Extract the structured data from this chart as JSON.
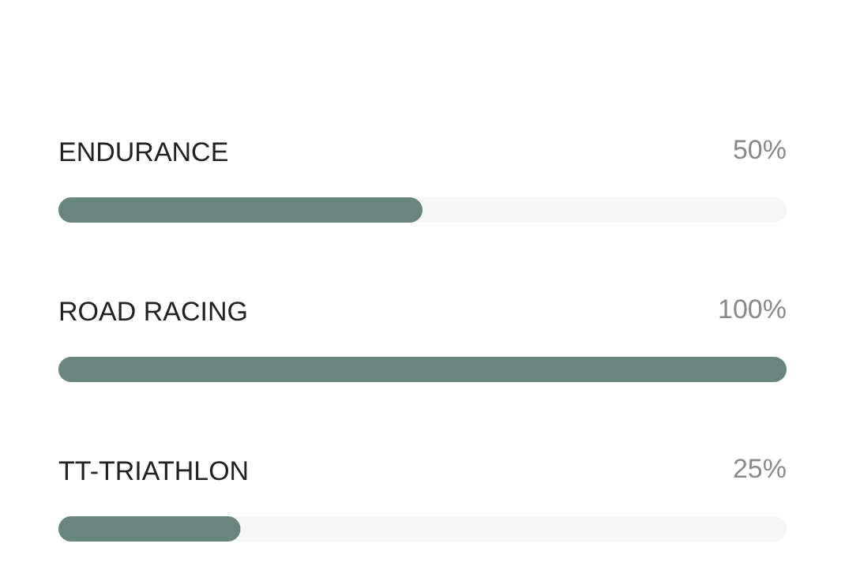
{
  "chart_data": {
    "type": "bar",
    "orientation": "horizontal",
    "categories": [
      "ENDURANCE",
      "ROAD RACING",
      "TT-TRIATHLON"
    ],
    "values": [
      50,
      100,
      25
    ],
    "value_labels": [
      "50%",
      "100%",
      "25%"
    ],
    "color": "#68857e",
    "xlim": [
      0,
      100
    ]
  }
}
